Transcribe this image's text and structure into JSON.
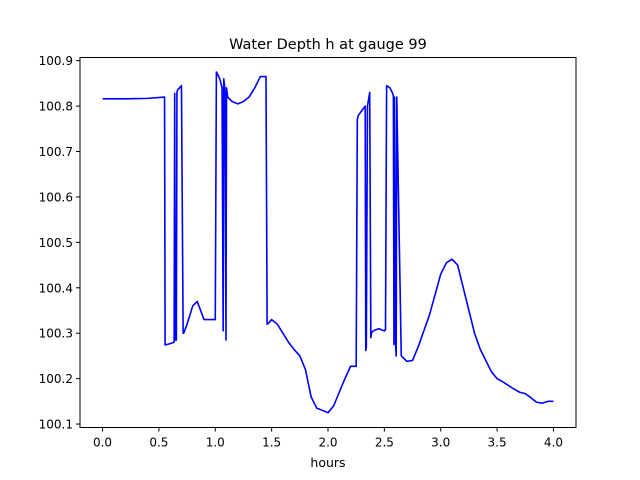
{
  "chart_data": {
    "type": "line",
    "title": "Water Depth h at gauge 99",
    "xlabel": "hours",
    "ylabel": "",
    "xlim": [
      -0.2,
      4.2
    ],
    "ylim": [
      100.0924,
      100.907
    ],
    "x_ticks": [
      0.0,
      0.5,
      1.0,
      1.5,
      2.0,
      2.5,
      3.0,
      3.5,
      4.0
    ],
    "x_tick_labels": [
      "0.0",
      "0.5",
      "1.0",
      "1.5",
      "2.0",
      "2.5",
      "3.0",
      "3.5",
      "4.0"
    ],
    "y_ticks": [
      100.1,
      100.2,
      100.3,
      100.4,
      100.5,
      100.6,
      100.7,
      100.8,
      100.9
    ],
    "y_tick_labels": [
      "100.1",
      "100.2",
      "100.3",
      "100.4",
      "100.5",
      "100.6",
      "100.7",
      "100.8",
      "100.9"
    ],
    "grid": false,
    "series": [
      {
        "color": "#0000ff",
        "x": [
          0.0,
          0.2,
          0.4,
          0.55,
          0.555,
          0.6,
          0.635,
          0.64,
          0.645,
          0.655,
          0.66,
          0.665,
          0.7,
          0.715,
          0.72,
          0.75,
          0.8,
          0.84,
          0.87,
          0.9,
          1.0,
          1.01,
          1.015,
          1.04,
          1.06,
          1.07,
          1.075,
          1.085,
          1.095,
          1.1,
          1.105,
          1.11,
          1.15,
          1.2,
          1.25,
          1.3,
          1.35,
          1.4,
          1.45,
          1.46,
          1.465,
          1.5,
          1.55,
          1.6,
          1.65,
          1.7,
          1.75,
          1.8,
          1.85,
          1.9,
          1.95,
          2.0,
          2.05,
          2.1,
          2.15,
          2.2,
          2.25,
          2.26,
          2.27,
          2.3,
          2.33,
          2.335,
          2.34,
          2.35,
          2.37,
          2.38,
          2.385,
          2.4,
          2.45,
          2.5,
          2.51,
          2.52,
          2.55,
          2.57,
          2.58,
          2.585,
          2.59,
          2.6,
          2.605,
          2.61,
          2.65,
          2.7,
          2.75,
          2.8,
          2.9,
          3.0,
          3.05,
          3.1,
          3.15,
          3.2,
          3.25,
          3.3,
          3.35,
          3.4,
          3.45,
          3.5,
          3.55,
          3.6,
          3.65,
          3.7,
          3.75,
          3.8,
          3.85,
          3.9,
          3.95,
          4.0
        ],
        "y": [
          100.816,
          100.816,
          100.817,
          100.82,
          100.274,
          100.277,
          100.28,
          100.828,
          100.285,
          100.285,
          100.83,
          100.835,
          100.845,
          100.3,
          100.3,
          100.32,
          100.36,
          100.37,
          100.35,
          100.33,
          100.33,
          100.875,
          100.873,
          100.86,
          100.84,
          100.305,
          100.86,
          100.84,
          100.285,
          100.84,
          100.83,
          100.82,
          100.81,
          100.805,
          100.81,
          100.82,
          100.84,
          100.865,
          100.865,
          100.32,
          100.32,
          100.33,
          100.32,
          100.3,
          100.28,
          100.264,
          100.25,
          100.22,
          100.16,
          100.135,
          100.13,
          100.125,
          100.14,
          100.17,
          100.2,
          100.227,
          100.227,
          100.77,
          100.78,
          100.79,
          100.8,
          100.262,
          100.27,
          100.8,
          100.83,
          100.29,
          100.3,
          100.305,
          100.31,
          100.305,
          100.308,
          100.845,
          100.84,
          100.83,
          100.823,
          100.275,
          100.82,
          100.27,
          100.25,
          100.82,
          100.25,
          100.238,
          100.24,
          100.27,
          100.34,
          100.43,
          100.455,
          100.463,
          100.45,
          100.4,
          100.35,
          100.3,
          100.265,
          100.24,
          100.215,
          100.2,
          100.193,
          100.185,
          100.177,
          100.17,
          100.167,
          100.158,
          100.148,
          100.146,
          100.15,
          100.15
        ]
      }
    ]
  }
}
